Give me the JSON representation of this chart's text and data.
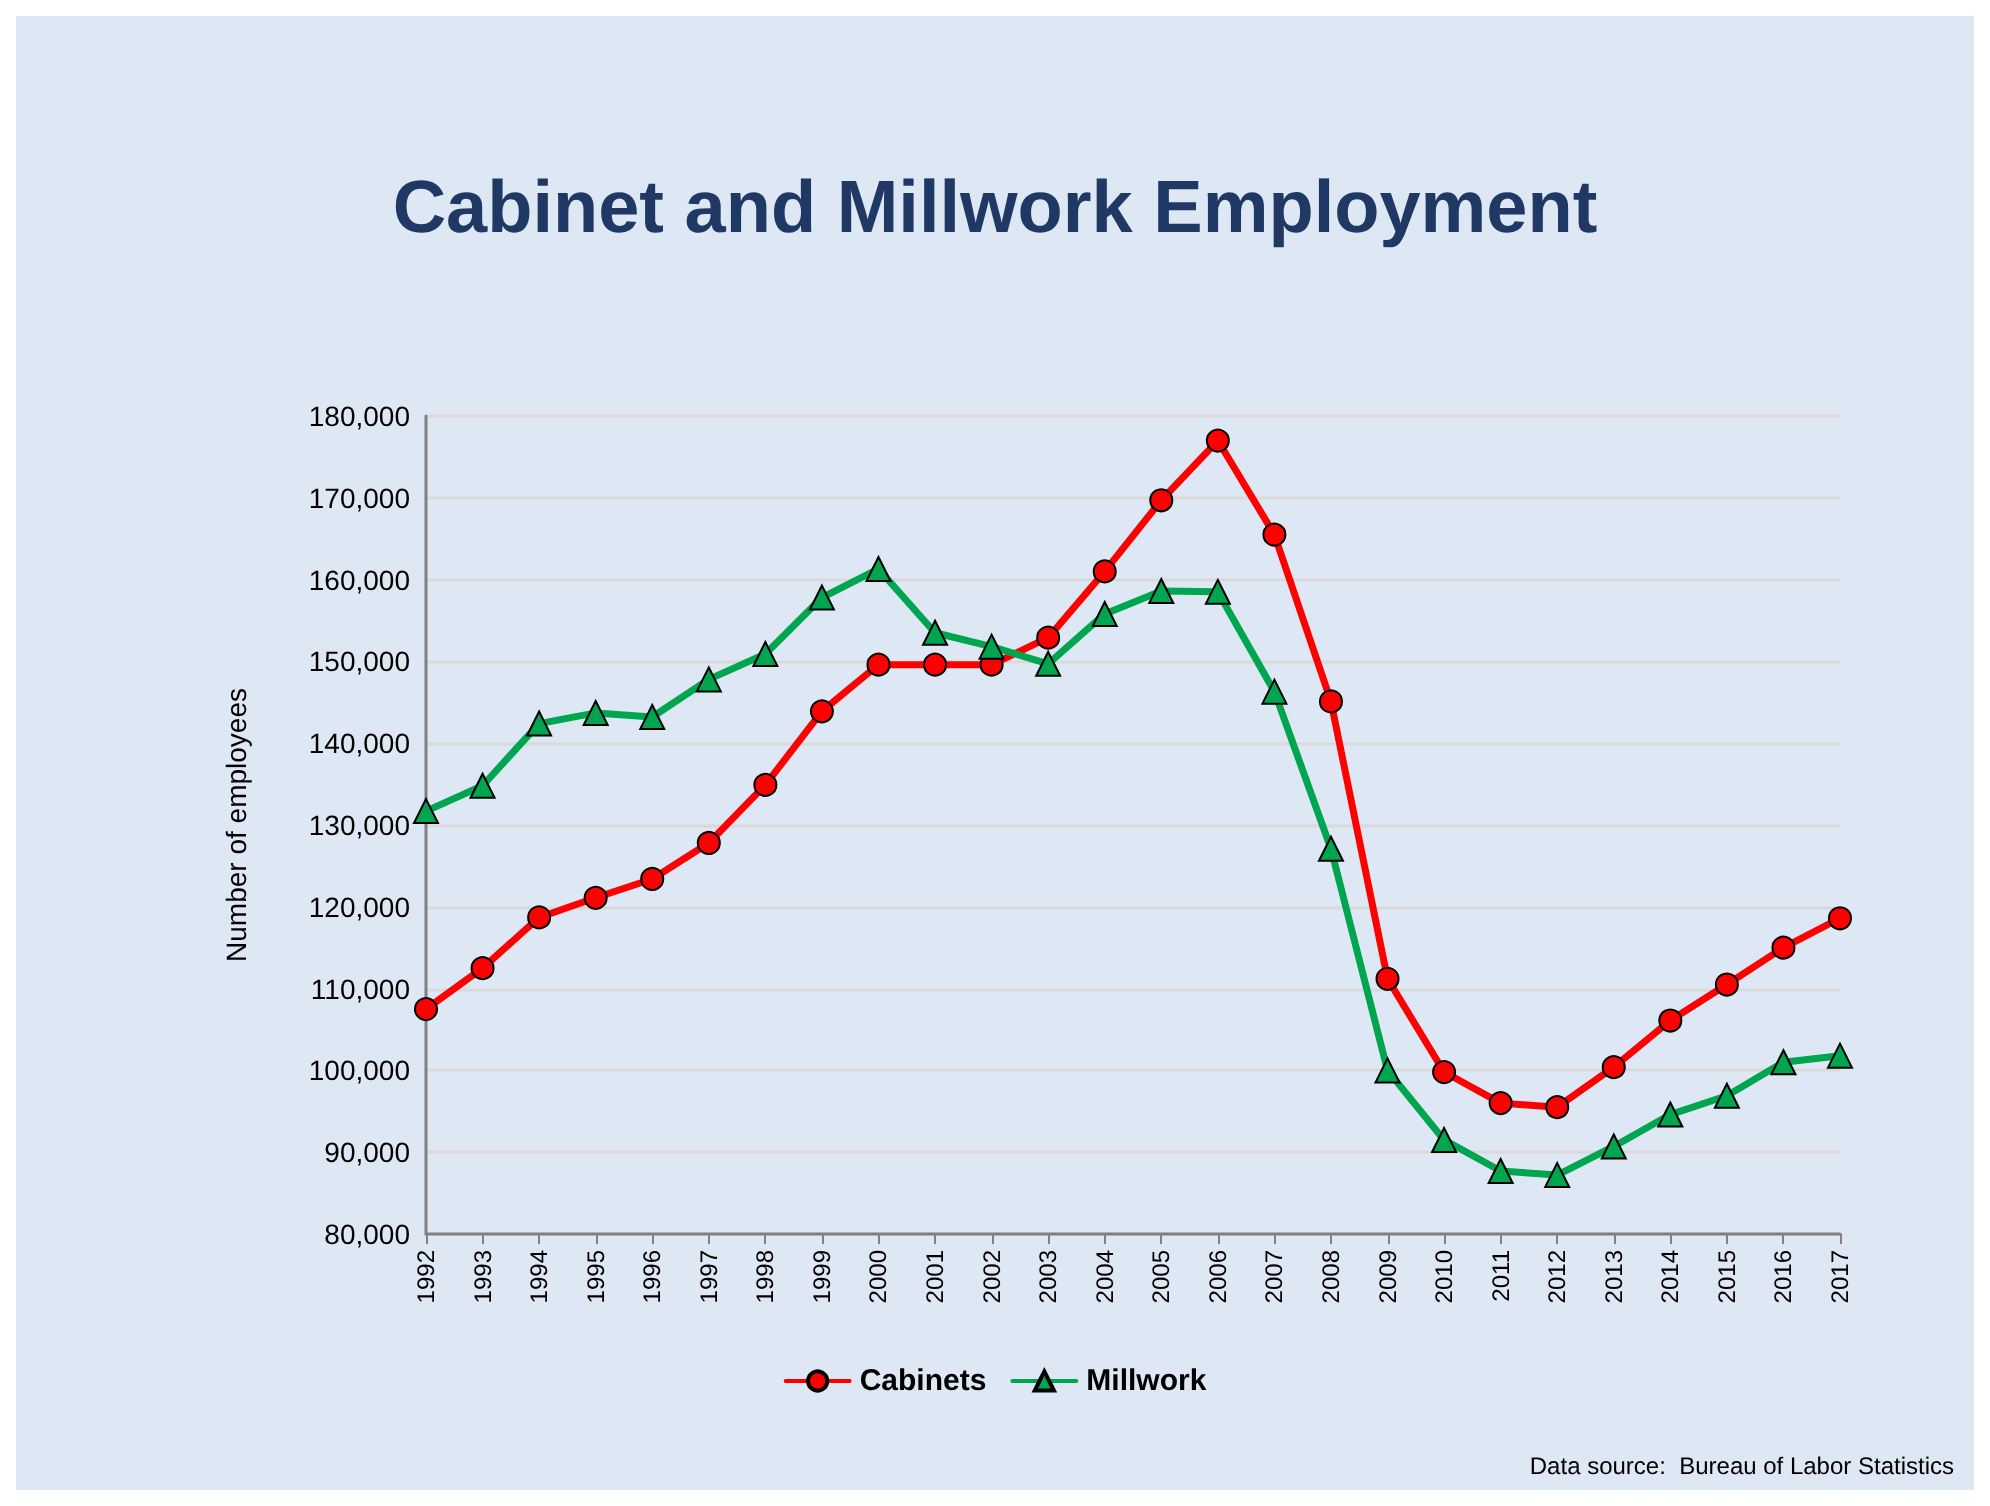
{
  "chart_data": {
    "type": "line",
    "title": "Cabinet and Millwork Employment",
    "ylabel": "Number of employees",
    "annotations": [
      "Data source:  Bureau of Labor Statistics"
    ],
    "categories": [
      "1992",
      "1993",
      "1994",
      "1995",
      "1996",
      "1997",
      "1998",
      "1999",
      "2000",
      "2001",
      "2002",
      "2003",
      "2004",
      "2005",
      "2006",
      "2007",
      "2008",
      "2009",
      "2010",
      "2011",
      "2012",
      "2013",
      "2014",
      "2015",
      "2016",
      "2017"
    ],
    "series": [
      {
        "name": "Cabinets",
        "color": "#ff0000",
        "marker": "circle",
        "values": [
          107500,
          112500,
          118700,
          121100,
          123400,
          127800,
          134900,
          143900,
          149600,
          149600,
          149600,
          152900,
          161000,
          169700,
          177000,
          165500,
          145100,
          111200,
          99800,
          96000,
          95500,
          100400,
          106100,
          110500,
          115000,
          118600
        ]
      },
      {
        "name": "Millwork",
        "color": "#00a550",
        "marker": "triangle",
        "values": [
          131700,
          134800,
          142400,
          143700,
          143200,
          147800,
          150900,
          157800,
          161300,
          153500,
          151800,
          149700,
          155800,
          158600,
          158500,
          146300,
          127100,
          100000,
          91500,
          87700,
          87200,
          90700,
          94600,
          96900,
          101000,
          101800
        ]
      }
    ],
    "ylim": [
      80000,
      180000
    ],
    "yticks": [
      {
        "value": 80000,
        "label": "80,000"
      },
      {
        "value": 90000,
        "label": "90,000"
      },
      {
        "value": 100000,
        "label": "100,000"
      },
      {
        "value": 110000,
        "label": "110,000"
      },
      {
        "value": 120000,
        "label": "120,000"
      },
      {
        "value": 130000,
        "label": "130,000"
      },
      {
        "value": 140000,
        "label": "140,000"
      },
      {
        "value": 150000,
        "label": "150,000"
      },
      {
        "value": 160000,
        "label": "160,000"
      },
      {
        "value": 170000,
        "label": "170,000"
      },
      {
        "value": 180000,
        "label": "180,000"
      }
    ],
    "grid": "y",
    "legend": "bottom"
  }
}
